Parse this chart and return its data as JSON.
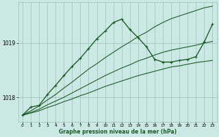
{
  "xlabel": "Graphe pression niveau de la mer (hPa)",
  "bg_color": "#cce8e4",
  "plot_bg_color": "#cce8e4",
  "grid_color": "#9bbfba",
  "line_color": "#1a5c28",
  "xlim": [
    -0.5,
    23.5
  ],
  "ylim": [
    1017.55,
    1019.75
  ],
  "yticks": [
    1018,
    1019
  ],
  "xticks": [
    0,
    1,
    2,
    3,
    4,
    5,
    6,
    7,
    8,
    9,
    10,
    11,
    12,
    13,
    14,
    15,
    16,
    17,
    18,
    19,
    20,
    21,
    22,
    23
  ],
  "series": [
    {
      "x": [
        0,
        1,
        2,
        3,
        4,
        5,
        6,
        7,
        8,
        9,
        10,
        11,
        12,
        13,
        14,
        15,
        16,
        17,
        18,
        19,
        20,
        21,
        22,
        23
      ],
      "y": [
        1017.67,
        1017.75,
        1017.84,
        1017.95,
        1018.05,
        1018.17,
        1018.28,
        1018.4,
        1018.52,
        1018.62,
        1018.73,
        1018.83,
        1018.93,
        1019.02,
        1019.12,
        1019.2,
        1019.3,
        1019.38,
        1019.45,
        1019.5,
        1019.55,
        1019.6,
        1019.65,
        1019.68
      ],
      "marker": false,
      "linewidth": 0.8
    },
    {
      "x": [
        0,
        1,
        2,
        3,
        4,
        5,
        6,
        7,
        8,
        9,
        10,
        11,
        12,
        13,
        14,
        15,
        16,
        17,
        18,
        19,
        20,
        21,
        22,
        23
      ],
      "y": [
        1017.67,
        1017.72,
        1017.78,
        1017.86,
        1017.93,
        1018.0,
        1018.08,
        1018.16,
        1018.24,
        1018.32,
        1018.4,
        1018.47,
        1018.54,
        1018.6,
        1018.67,
        1018.72,
        1018.78,
        1018.83,
        1018.87,
        1018.9,
        1018.93,
        1018.96,
        1019.0,
        1019.03
      ],
      "marker": false,
      "linewidth": 0.8
    },
    {
      "x": [
        0,
        1,
        2,
        3,
        4,
        5,
        6,
        7,
        8,
        9,
        10,
        11,
        12,
        13,
        14,
        15,
        16,
        17,
        18,
        19,
        20,
        21,
        22,
        23
      ],
      "y": [
        1017.67,
        1017.71,
        1017.75,
        1017.81,
        1017.86,
        1017.92,
        1017.97,
        1018.03,
        1018.08,
        1018.14,
        1018.2,
        1018.25,
        1018.3,
        1018.35,
        1018.4,
        1018.44,
        1018.48,
        1018.52,
        1018.56,
        1018.58,
        1018.61,
        1018.64,
        1018.66,
        1018.68
      ],
      "marker": false,
      "linewidth": 0.8
    },
    {
      "x": [
        0,
        1,
        2,
        3,
        4,
        5,
        6,
        7,
        8,
        9,
        10,
        11,
        12,
        13,
        14,
        15,
        16,
        17,
        18,
        19,
        20,
        21,
        22,
        23
      ],
      "y": [
        1017.67,
        1017.82,
        1017.85,
        1018.05,
        1018.22,
        1018.4,
        1018.57,
        1018.72,
        1018.9,
        1019.08,
        1019.22,
        1019.38,
        1019.44,
        1019.25,
        1019.1,
        1018.93,
        1018.7,
        1018.65,
        1018.65,
        1018.68,
        1018.7,
        1018.75,
        1019.02,
        1019.35
      ],
      "marker": true,
      "linewidth": 1.0
    }
  ]
}
